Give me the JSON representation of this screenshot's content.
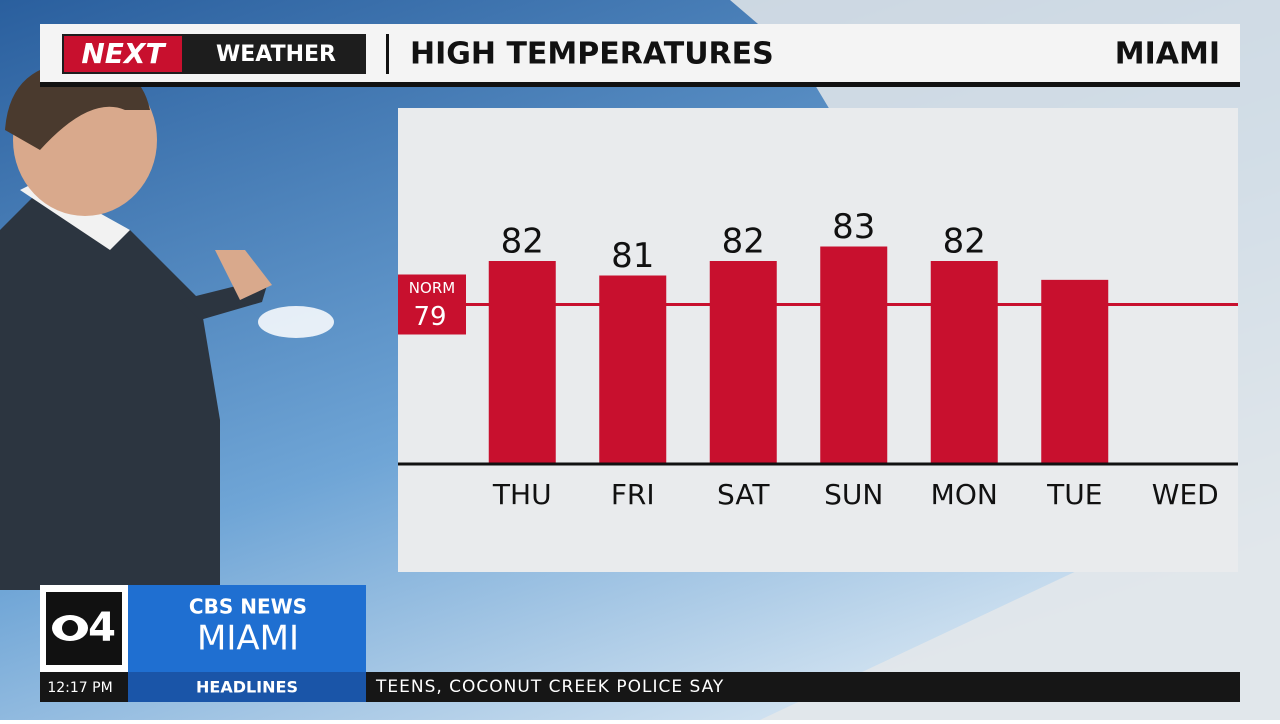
{
  "chart_data": {
    "type": "bar",
    "title": "HIGH TEMPERATURES",
    "location": "MIAMI",
    "categories": [
      "THU",
      "FRI",
      "SAT",
      "SUN",
      "MON",
      "TUE",
      "WED"
    ],
    "values": [
      82,
      81,
      82,
      83,
      82,
      80.7,
      null
    ],
    "value_labels": [
      "82",
      "81",
      "82",
      "83",
      "82",
      null,
      null
    ],
    "color": "#c8102e",
    "ylim": [
      68,
      92
    ],
    "norm": {
      "label": "NORM",
      "value": 79
    }
  },
  "broadcast": {
    "brand": "NEXT",
    "brand_suffix": "WEATHER",
    "channel": "4",
    "network": "CBS NEWS",
    "station": "MIAMI",
    "time": "12:17 PM",
    "segment": "HEADLINES",
    "ticker": "TEENS, COCONUT CREEK POLICE SAY"
  }
}
